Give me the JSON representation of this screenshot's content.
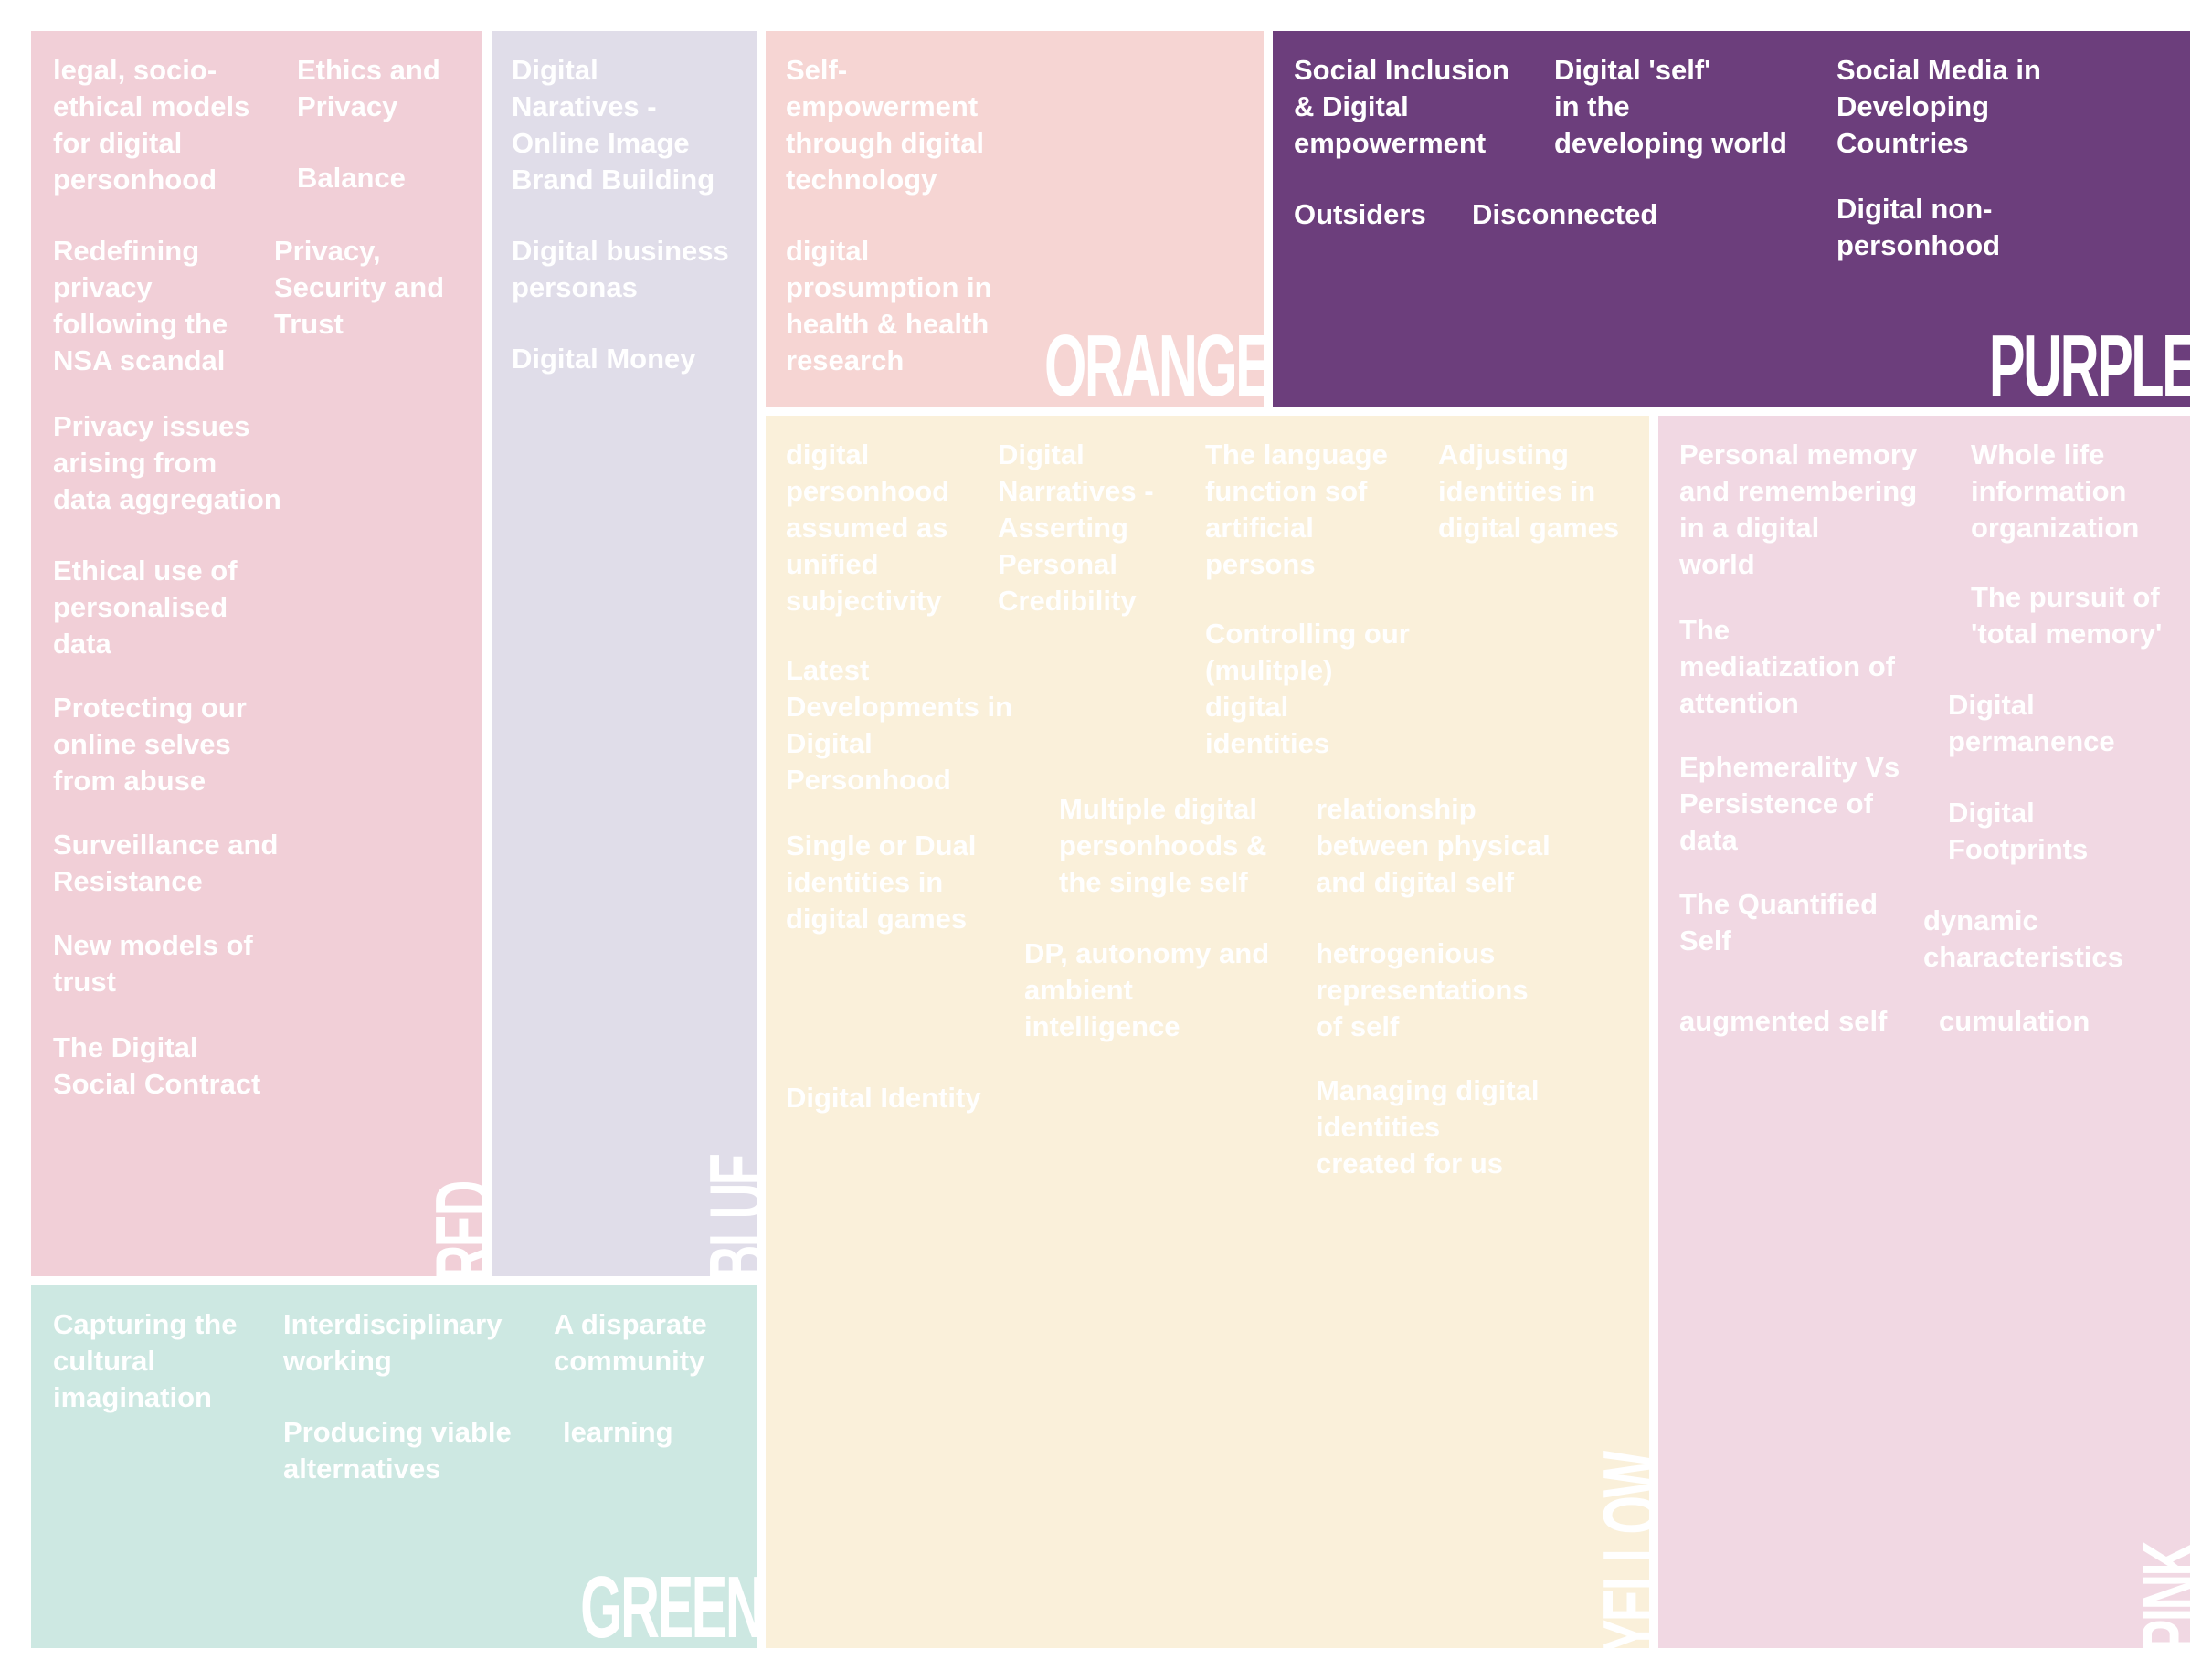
{
  "colors": {
    "red": "#f1cfd7",
    "blue": "#e0dde9",
    "orange": "#f6d5d3",
    "purple": "#6c3e7c",
    "yellow": "#faf0da",
    "pink": "#f1d8e3",
    "green": "#cde8e2",
    "text_light": "#ffffff"
  },
  "panels": {
    "red": {
      "name": "RED",
      "items": [
        "legal, socio-\nethical models\nfor digital\npersonhood",
        "Ethics and\nPrivacy",
        "Balance",
        "Redefining\nprivacy\nfollowing the\nNSA scandal",
        "Privacy,\nSecurity and\nTrust",
        "Privacy issues\narising from\ndata aggregation",
        "Ethical use of\npersonalised\ndata",
        "Protecting our\nonline selves\nfrom abuse",
        "Surveillance and\nResistance",
        "New models of\ntrust",
        "The Digital\nSocial Contract"
      ]
    },
    "blue": {
      "name": "BLUE",
      "items": [
        "Digital\nNaratives -\nOnline Image\nBrand Building",
        "Digital business\npersonas",
        "Digital Money"
      ]
    },
    "orange": {
      "name": "ORANGE",
      "items": [
        "Self-\nempowerment\nthrough digital\ntechnology",
        "digital\nprosumption in\nhealth & health\nresearch"
      ]
    },
    "purple": {
      "name": "PURPLE",
      "items": [
        "Social Inclusion\n& Digital\nempowerment",
        "Digital 'self'\nin the\ndeveloping world",
        "Social Media in\nDeveloping\nCountries",
        "Outsiders",
        "Disconnected",
        "Digital non-\npersonhood"
      ]
    },
    "yellow": {
      "name": "YELLOW",
      "items": [
        "digital\npersonhood\nassumed as\nunified\nsubjectivity",
        "Digital\nNarratives -\nAsserting\nPersonal\nCredibility",
        "The language\nfunction sof\nartificial\npersons",
        "Adjusting\nidentities in\ndigital games",
        "Controlling our\n(mulitple)\ndigital\nidentities",
        "Latest\nDevelopments in\nDigital\nPersonhood",
        "Multiple digital\npersonhoods &\nthe single self",
        "relationship\nbetween physical\nand digital self",
        "Single or Dual\nidentities in\ndigital games",
        "DP, autonomy and\nambient\nintelligence",
        "hetrogenious\nrepresentations\nof self",
        "Digital Identity",
        "Managing digital\nidentities\ncreated for us"
      ]
    },
    "pink": {
      "name": "PINK",
      "items": [
        "Personal memory\nand remembering\nin a digital\nworld",
        "Whole life\ninformation\norganization",
        "The pursuit of\n'total memory'",
        "The\nmediatization of\nattention",
        "Digital\npermanence",
        "Ephemerality Vs\nPersistence of\ndata",
        "Digital\nFootprints",
        "The Quantified\nSelf",
        "dynamic\ncharacteristics",
        "augmented self",
        "cumulation"
      ]
    },
    "green": {
      "name": "GREEN",
      "items": [
        "Capturing the\ncultural\nimagination",
        "Interdisciplinary\nworking",
        "A disparate\ncommunity",
        "Producing viable\nalternatives",
        "learning"
      ]
    }
  }
}
